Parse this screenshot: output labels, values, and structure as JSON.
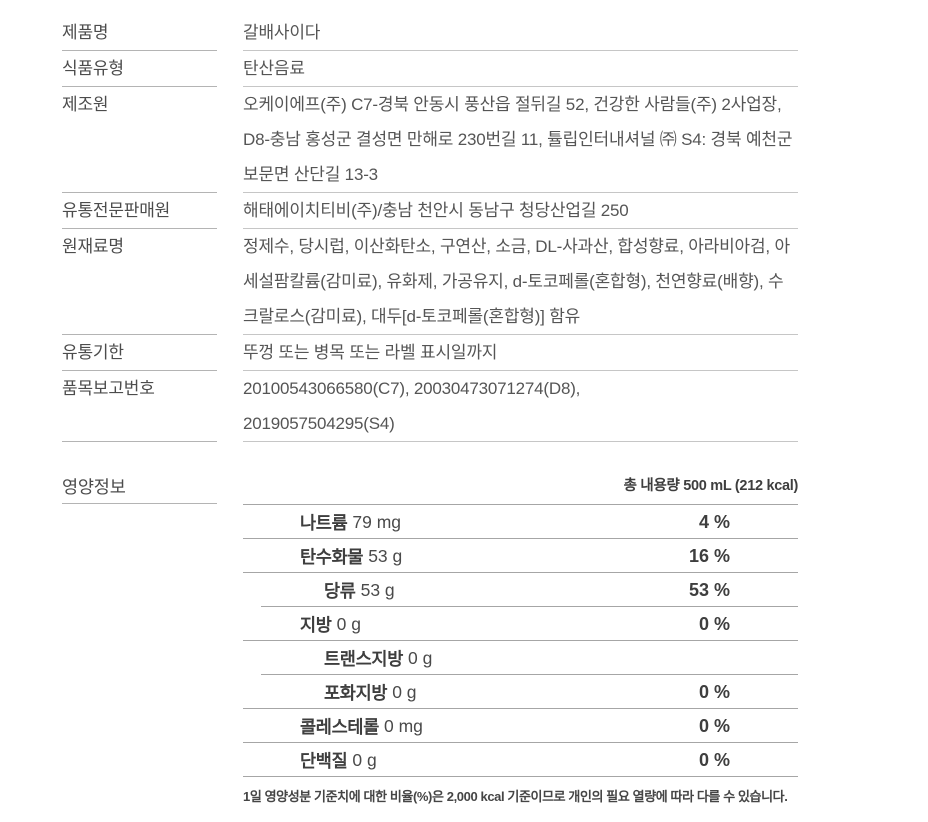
{
  "info_table": {
    "rows": [
      {
        "label": "제품명",
        "value": "갈배사이다"
      },
      {
        "label": "식품유형",
        "value": "탄산음료"
      },
      {
        "label": "제조원",
        "value": "오케이에프(주) C7-경북 안동시 풍산읍 절뒤길 52, 건강한 사람들(주) 2사업장, D8-충남 홍성군 결성면 만해로 230번길 11, 튤립인터내셔널 ㈜ S4: 경북 예천군 보문면 산단길 13-3"
      },
      {
        "label": "유통전문판매원",
        "value": "해태에이치티비(주)/충남 천안시 동남구 청당산업길 250"
      },
      {
        "label": "원재료명",
        "value": "정제수, 당시럽, 이산화탄소, 구연산, 소금, DL-사과산, 합성향료, 아라비아검, 아세설팜칼륨(감미료), 유화제, 가공유지, d-토코페롤(혼합형), 천연향료(배향), 수크랄로스(감미료), 대두[d-토코페롤(혼합형)] 함유"
      },
      {
        "label": "유통기한",
        "value": "뚜껑 또는 병목 또는 라벨 표시일까지"
      },
      {
        "label": "품목보고번호",
        "value": "20100543066580(C7), 20030473071274(D8),\n2019057504295(S4)"
      }
    ]
  },
  "nutrition": {
    "title": "영양정보",
    "serving": "총 내용량 500 mL (212 kcal)",
    "rows": [
      {
        "name": "나트륨",
        "amount": "79 mg",
        "percent": "4 %"
      },
      {
        "name": "탄수화물",
        "amount": "53 g",
        "percent": "16 %"
      },
      {
        "name": "당류",
        "amount": "53 g",
        "percent": "53 %"
      },
      {
        "name": "지방",
        "amount": "0 g",
        "percent": "0 %"
      },
      {
        "name": "트랜스지방",
        "amount": "0 g",
        "percent": ""
      },
      {
        "name": "포화지방",
        "amount": "0 g",
        "percent": "0 %"
      },
      {
        "name": "콜레스테롤",
        "amount": "0 mg",
        "percent": "0 %"
      },
      {
        "name": "단백질",
        "amount": "0 g",
        "percent": "0 %"
      }
    ],
    "footnote": "1일 영양성분 기준치에 대한 비율(%)은 2,000 kcal 기준이므로 개인의 필요 열량에 따라 다를 수 있습니다."
  }
}
